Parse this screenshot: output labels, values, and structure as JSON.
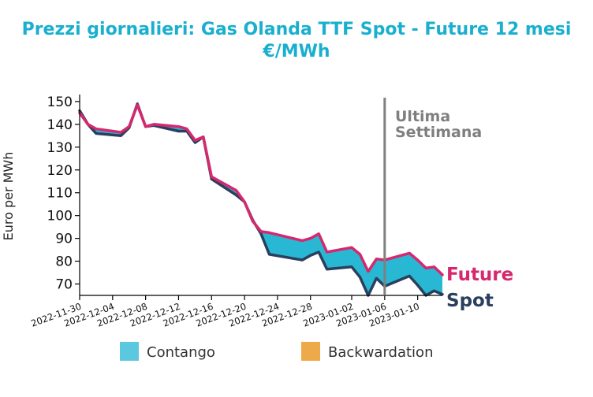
{
  "title_line1": "Prezzi giornalieri: Gas Olanda TTF Spot - Future 12 mesi",
  "title_line2": "€/MWh",
  "chart_data": {
    "type": "area",
    "ylabel": "Euro per MWh",
    "ylim": [
      65,
      151
    ],
    "yticks": [
      70,
      80,
      90,
      100,
      110,
      120,
      130,
      140,
      150
    ],
    "xlim": [
      "2022-11-30",
      "2023-01-13"
    ],
    "xticks": [
      "2022-11-30",
      "2022-12-04",
      "2022-12-08",
      "2022-12-12",
      "2022-12-16",
      "2022-12-20",
      "2022-12-24",
      "2022-12-28",
      "2023-01-02",
      "2023-01-06",
      "2023-01-10"
    ],
    "x": [
      "2022-11-30",
      "2022-12-01",
      "2022-12-02",
      "2022-12-05",
      "2022-12-06",
      "2022-12-07",
      "2022-12-08",
      "2022-12-09",
      "2022-12-12",
      "2022-12-13",
      "2022-12-14",
      "2022-12-15",
      "2022-12-16",
      "2022-12-19",
      "2022-12-20",
      "2022-12-21",
      "2022-12-22",
      "2022-12-23",
      "2022-12-27",
      "2022-12-28",
      "2022-12-29",
      "2022-12-30",
      "2023-01-02",
      "2023-01-03",
      "2023-01-04",
      "2023-01-05",
      "2023-01-06",
      "2023-01-09",
      "2023-01-10",
      "2023-01-11",
      "2023-01-12",
      "2023-01-13"
    ],
    "series": [
      {
        "name": "Future",
        "color": "#d6286e",
        "values": [
          145,
          140,
          138,
          136.5,
          139,
          148.5,
          139,
          140,
          139,
          138,
          133,
          134.5,
          117,
          111,
          106,
          97.5,
          93,
          92.5,
          89,
          90,
          92,
          84,
          86,
          83,
          75.5,
          81,
          80.5,
          83.5,
          80.5,
          77,
          77.5,
          74
        ]
      },
      {
        "name": "Spot",
        "color": "#2a3f5e",
        "values": [
          146,
          140,
          136,
          135,
          138.5,
          149,
          139,
          139.5,
          137,
          137,
          132,
          134.5,
          116,
          109,
          106,
          98,
          92,
          83,
          80.5,
          82.5,
          84,
          76.5,
          77.5,
          73,
          65,
          72.5,
          69,
          73.5,
          69.5,
          65,
          67,
          65.5
        ]
      }
    ],
    "legend": [
      "Contango",
      "Backwardation"
    ],
    "legend_position": "bottom",
    "fill_colors": {
      "contango": "#29b8d4",
      "contango_legend": "#5cc8e0",
      "backwardation": "#eea94a"
    },
    "annotation": {
      "line1": "Ultima",
      "line2": "Settimana",
      "x": "2023-01-06"
    },
    "end_labels": {
      "future": "Future",
      "spot": "Spot"
    }
  }
}
